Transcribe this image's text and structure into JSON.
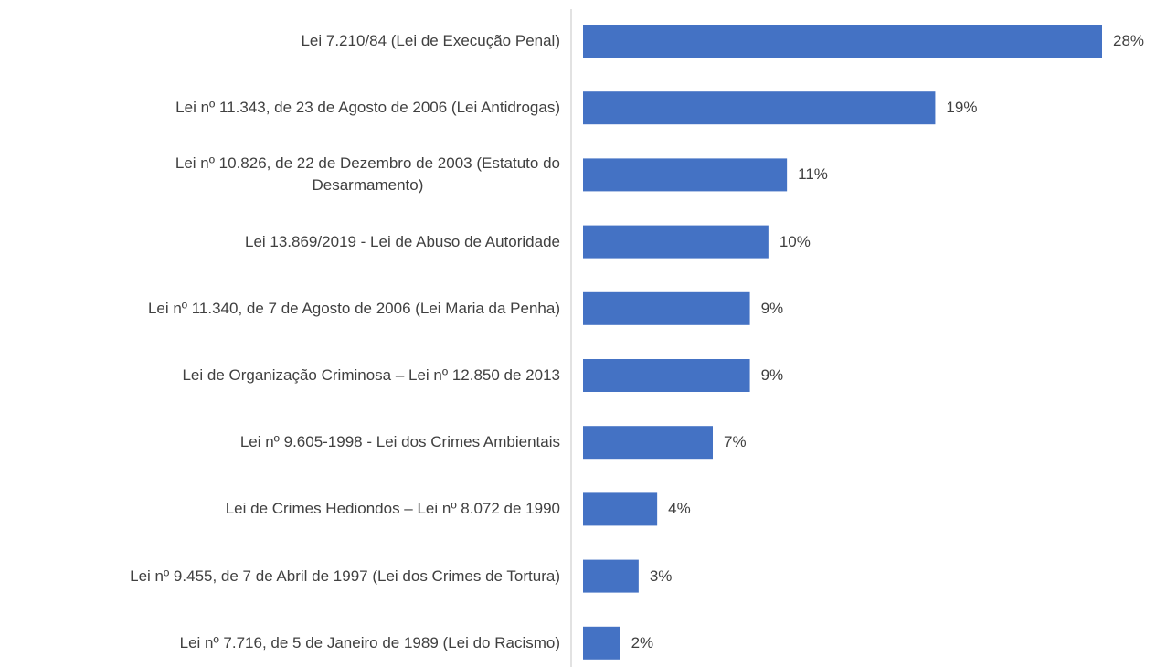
{
  "chart_data": {
    "type": "bar",
    "orientation": "horizontal",
    "categories": [
      "Lei 7.210/84 (Lei de Execução Penal)",
      "Lei nº 11.343, de 23 de Agosto de 2006 (Lei Antidrogas)",
      "Lei nº 10.826, de 22 de Dezembro de 2003 (Estatuto do\nDesarmamento)",
      "Lei 13.869/2019 - Lei de Abuso de Autoridade",
      "Lei nº 11.340, de 7 de Agosto de 2006 (Lei Maria da Penha)",
      "Lei de Organização Criminosa – Lei nº 12.850 de 2013",
      "Lei nº 9.605-1998 - Lei dos Crimes Ambientais",
      "Lei de Crimes Hediondos – Lei nº 8.072 de 1990",
      "Lei nº 9.455, de 7 de Abril de 1997 (Lei dos Crimes de Tortura)",
      "Lei nº 7.716, de 5 de Janeiro de 1989 (Lei do Racismo)"
    ],
    "values": [
      28,
      19,
      11,
      10,
      9,
      9,
      7,
      4,
      3,
      2
    ],
    "value_labels": [
      "28%",
      "19%",
      "11%",
      "10%",
      "9%",
      "9%",
      "7%",
      "4%",
      "3%",
      "2%"
    ],
    "color": "#4472c4"
  }
}
